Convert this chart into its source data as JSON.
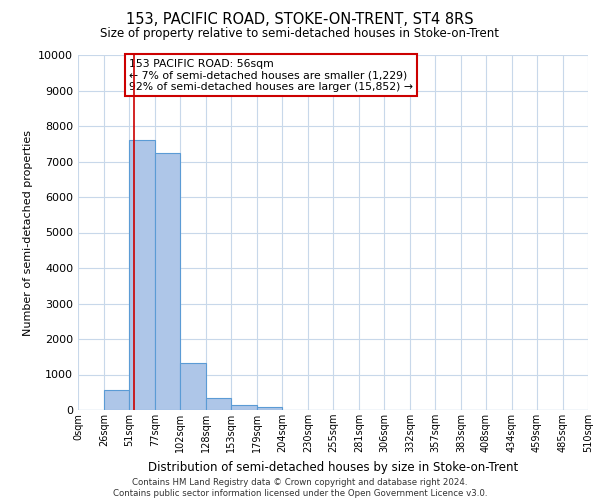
{
  "title": "153, PACIFIC ROAD, STOKE-ON-TRENT, ST4 8RS",
  "subtitle": "Size of property relative to semi-detached houses in Stoke-on-Trent",
  "xlabel": "Distribution of semi-detached houses by size in Stoke-on-Trent",
  "ylabel": "Number of semi-detached properties",
  "bar_edges": [
    0,
    26,
    51,
    77,
    102,
    128,
    153,
    179,
    204,
    230,
    255,
    281,
    306,
    332,
    357,
    383,
    408,
    434,
    459,
    485,
    510
  ],
  "bar_heights": [
    0,
    560,
    7600,
    7250,
    1330,
    330,
    130,
    80,
    0,
    0,
    0,
    0,
    0,
    0,
    0,
    0,
    0,
    0,
    0,
    0
  ],
  "bar_color": "#aec6e8",
  "bar_edge_color": "#5b9bd5",
  "vline_x": 56,
  "vline_color": "#cc0000",
  "ylim": [
    0,
    10000
  ],
  "yticks": [
    0,
    1000,
    2000,
    3000,
    4000,
    5000,
    6000,
    7000,
    8000,
    9000,
    10000
  ],
  "xtick_labels": [
    "0sqm",
    "26sqm",
    "51sqm",
    "77sqm",
    "102sqm",
    "128sqm",
    "153sqm",
    "179sqm",
    "204sqm",
    "230sqm",
    "255sqm",
    "281sqm",
    "306sqm",
    "332sqm",
    "357sqm",
    "383sqm",
    "408sqm",
    "434sqm",
    "459sqm",
    "485sqm",
    "510sqm"
  ],
  "annotation_title": "153 PACIFIC ROAD: 56sqm",
  "annotation_line1": "← 7% of semi-detached houses are smaller (1,229)",
  "annotation_line2": "92% of semi-detached houses are larger (15,852) →",
  "annotation_box_color": "#ffffff",
  "annotation_box_edge_color": "#cc0000",
  "footer_line1": "Contains HM Land Registry data © Crown copyright and database right 2024.",
  "footer_line2": "Contains public sector information licensed under the Open Government Licence v3.0.",
  "background_color": "#ffffff",
  "grid_color": "#c8d8ea"
}
